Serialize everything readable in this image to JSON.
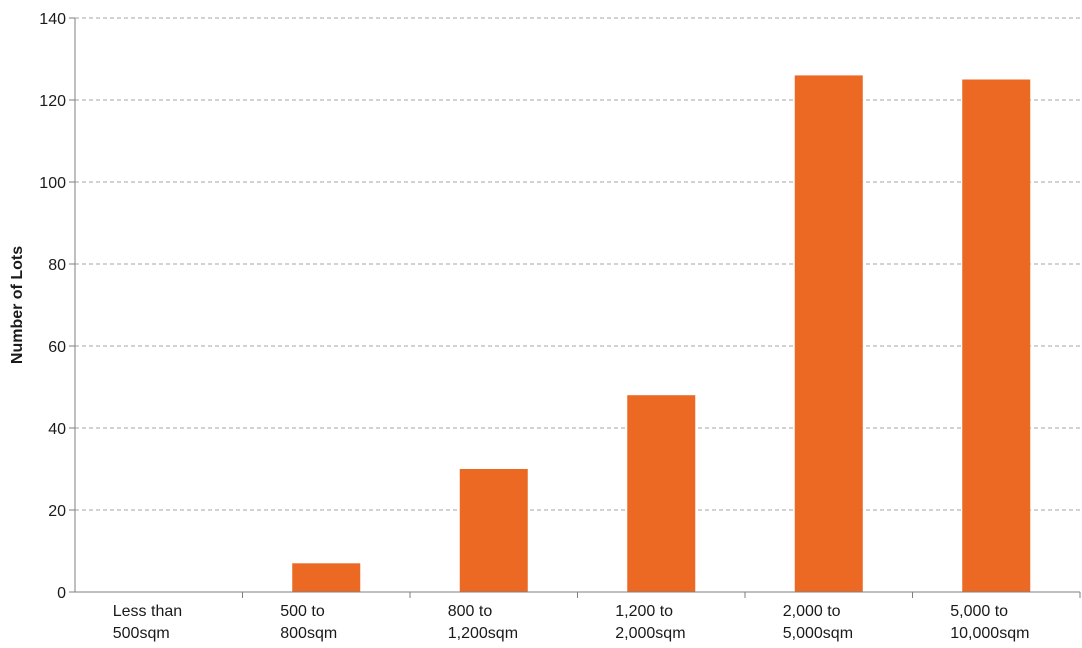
{
  "chart_data": {
    "type": "bar",
    "categories": [
      [
        "Less than",
        "500sqm"
      ],
      [
        "500 to",
        "800sqm"
      ],
      [
        "800 to",
        "1,200sqm"
      ],
      [
        "1,200 to",
        "2,000sqm"
      ],
      [
        "2,000 to",
        "5,000sqm"
      ],
      [
        "5,000 to",
        "10,000sqm"
      ]
    ],
    "values": [
      0,
      7,
      30,
      48,
      126,
      125
    ],
    "ylabel": "Number of Lots",
    "xlabel": "",
    "ylim": [
      0,
      140
    ],
    "yticks": [
      0,
      20,
      40,
      60,
      80,
      100,
      120,
      140
    ],
    "grid": true,
    "bar_color": "#ec6924"
  }
}
